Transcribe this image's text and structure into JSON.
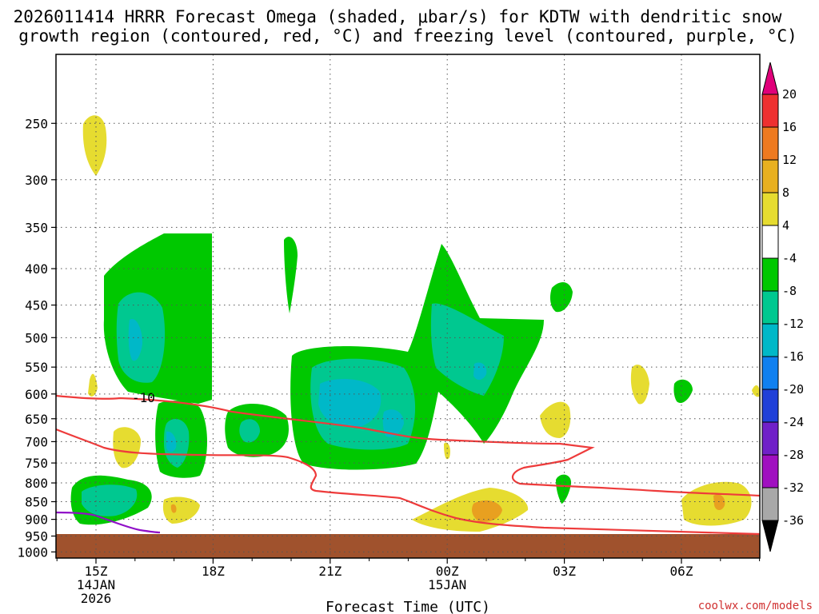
{
  "chart_data": {
    "type": "heatmap",
    "title_line1": "2026011414 HRRR Forecast Omega (shaded, μbar/s) for KDTW with dendritic snow",
    "title_line2": "growth region (contoured, red, °C) and freezing level (contoured, purple, °C)",
    "xlabel": "Forecast Time (UTC)",
    "credit": "coolwx.com/models",
    "y_axis": {
      "scale": "log-pressure",
      "ticks": [
        "250",
        "300",
        "350",
        "400",
        "450",
        "500",
        "550",
        "600",
        "650",
        "700",
        "750",
        "800",
        "850",
        "900",
        "950",
        "1000"
      ],
      "range_hPa": [
        200,
        1020
      ]
    },
    "x_axis": {
      "tick_labels": [
        "15Z",
        "18Z",
        "21Z",
        "00Z",
        "03Z",
        "06Z"
      ],
      "date_labels": [
        {
          "at": "15Z",
          "lines": [
            "14JAN",
            "2026"
          ]
        },
        {
          "at": "00Z",
          "lines": [
            "15JAN"
          ]
        }
      ]
    },
    "grid": true,
    "colorbar": {
      "labels": [
        "20",
        "16",
        "12",
        "8",
        "4",
        "-4",
        "-8",
        "-12",
        "-16",
        "-20",
        "-24",
        "-28",
        "-32",
        "-36"
      ],
      "colors": [
        "#e0007a",
        "#ee3030",
        "#ee7a20",
        "#e8b020",
        "#e6dc30",
        "#ffffff",
        "#00c800",
        "#00c890",
        "#00b8c8",
        "#1080f0",
        "#2040d8",
        "#7020c8",
        "#a010c0",
        "#a8a8a8",
        "#000000"
      ]
    },
    "contour_labels": [
      {
        "text": "-10",
        "color": "#e03030"
      }
    ],
    "palette": {
      "green": "#00c800",
      "teal": "#00c890",
      "cyan": "#00b8c8",
      "yellow": "#e6dc30",
      "orange": "#e8a020",
      "ground": "#a0522d",
      "red_line": "#ee3b3b",
      "purple_line": "#9010c8"
    }
  }
}
